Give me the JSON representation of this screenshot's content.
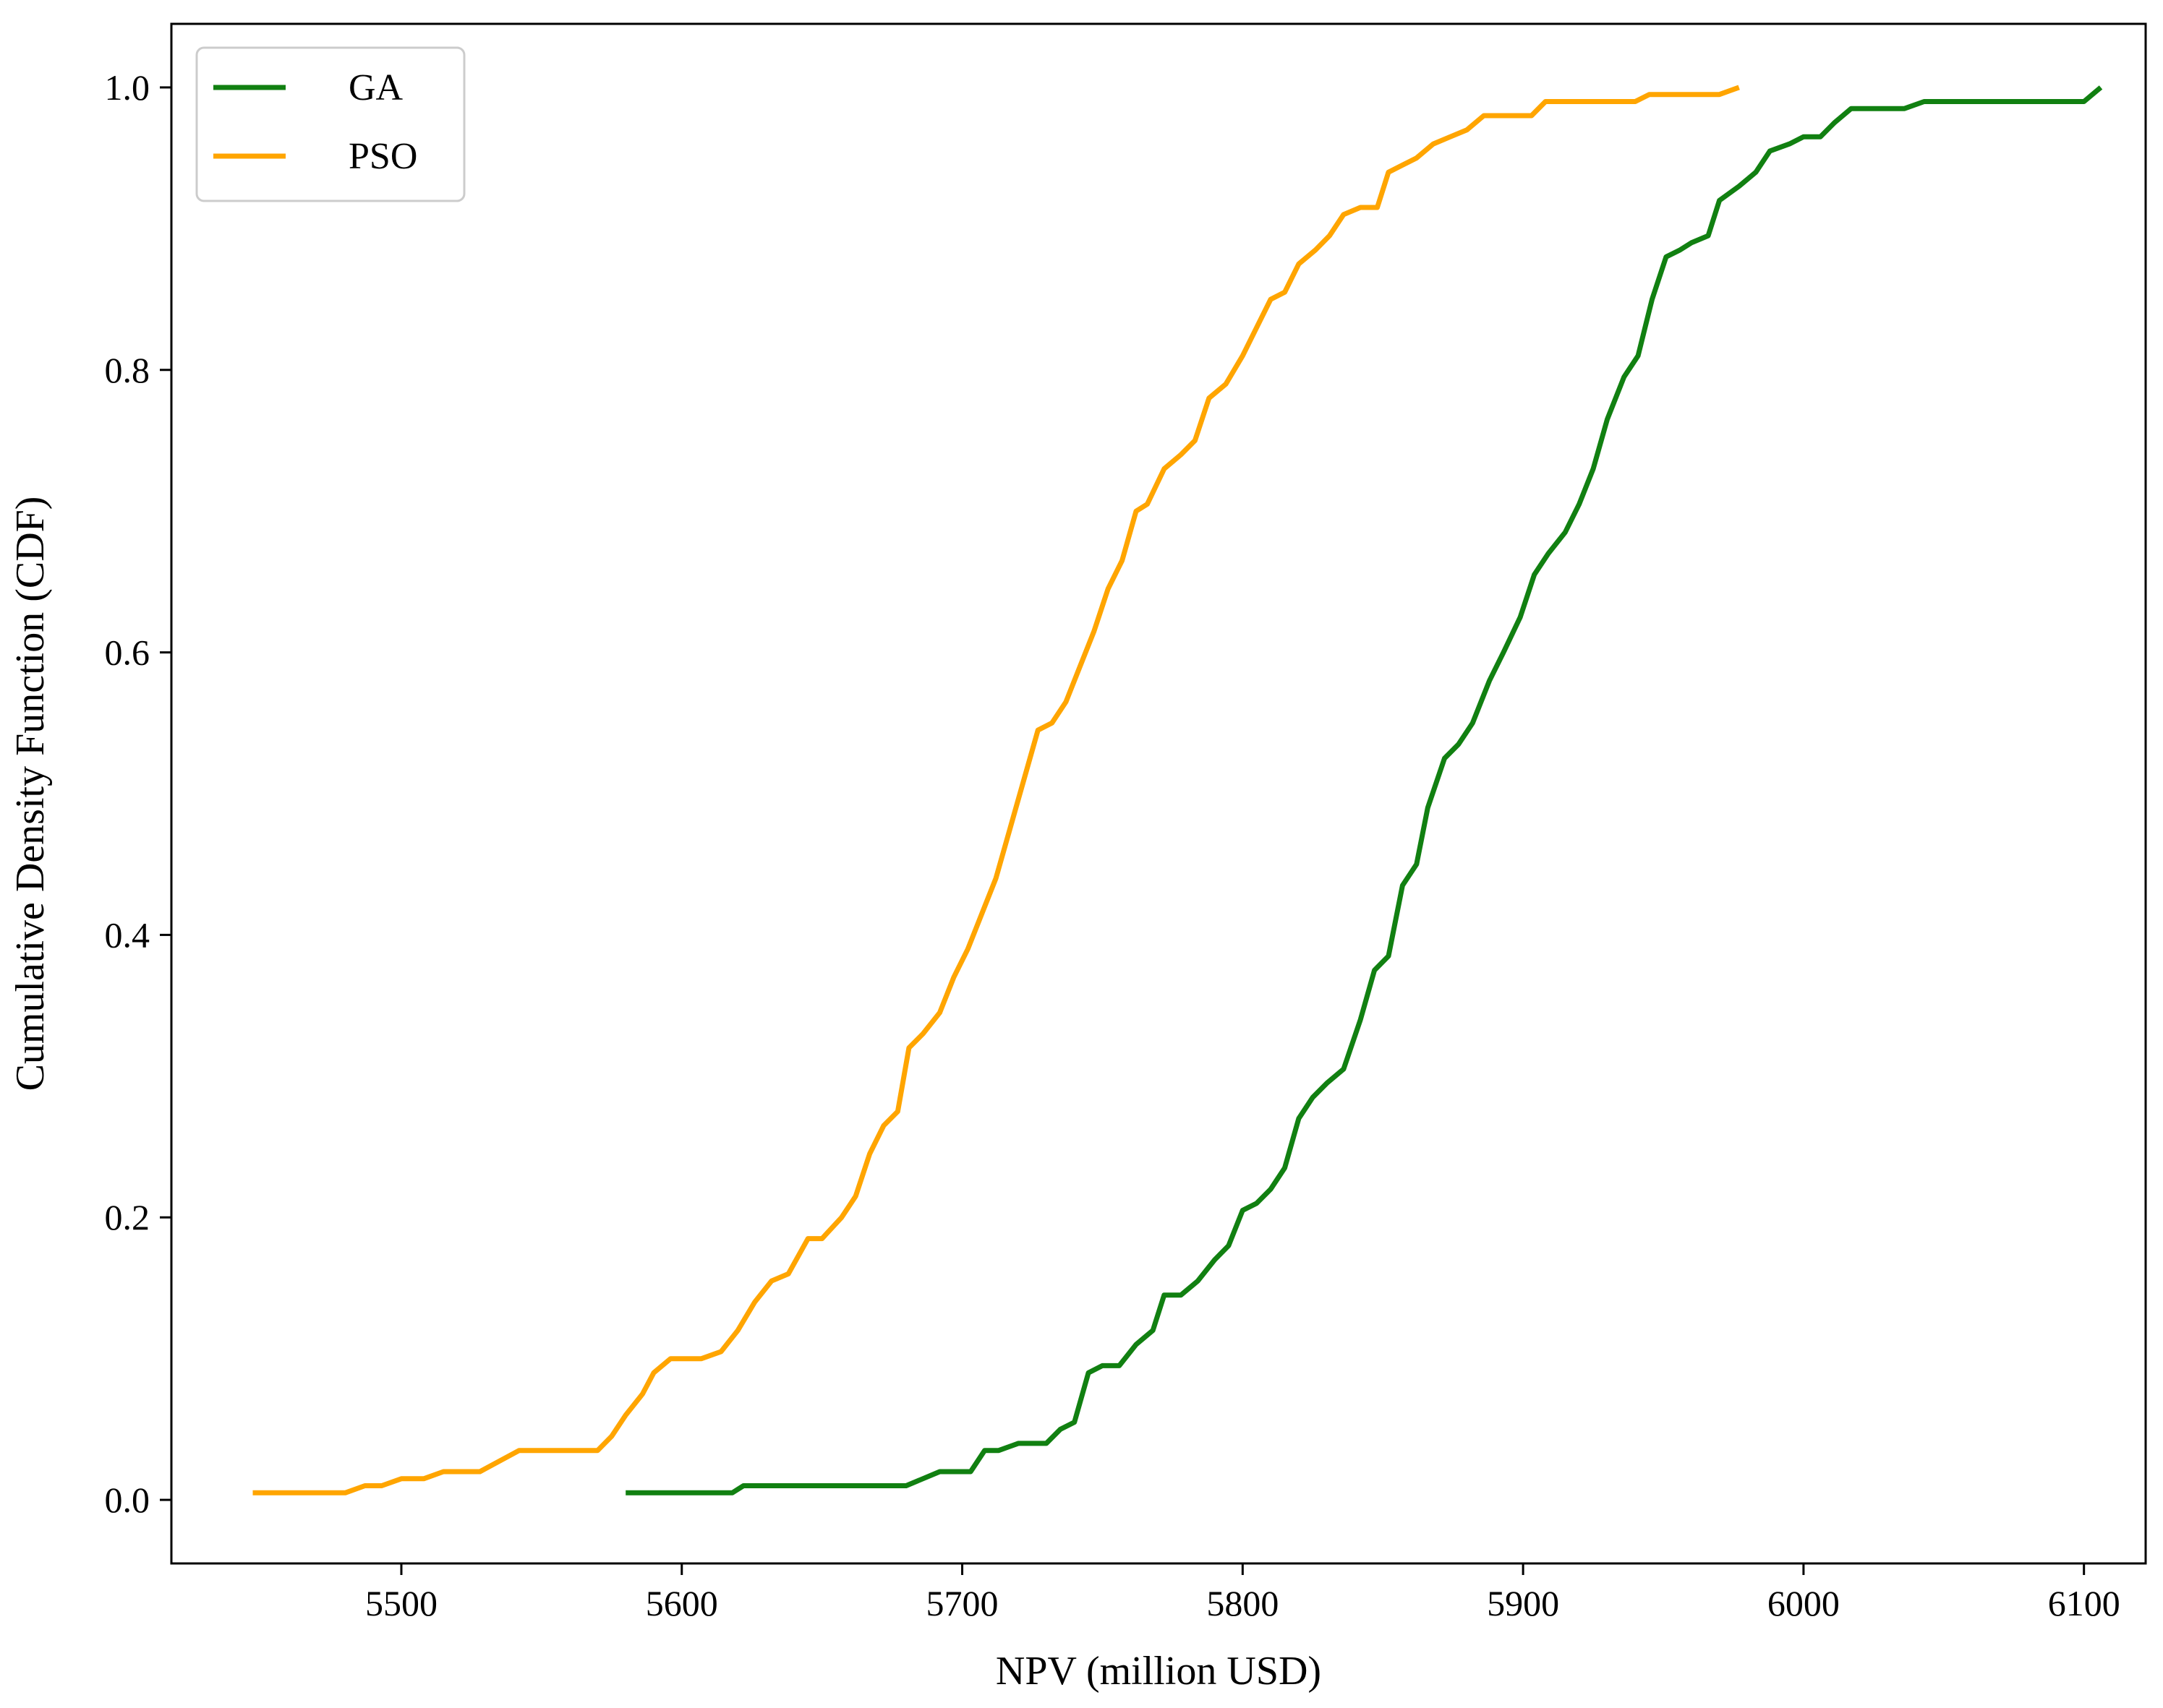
{
  "chart_data": {
    "type": "line",
    "title": "",
    "xlabel": "NPV (million USD)",
    "ylabel": "Cumulative Density Function (CDF)",
    "xlim": [
      5418,
      6122
    ],
    "ylim": [
      -0.045,
      1.045
    ],
    "xticks": [
      5500,
      5600,
      5700,
      5800,
      5900,
      6000,
      6100
    ],
    "yticks": [
      0.0,
      0.2,
      0.4,
      0.6,
      0.8,
      1.0
    ],
    "xtick_labels": [
      "5500",
      "5600",
      "5700",
      "5800",
      "5900",
      "6000",
      "6100"
    ],
    "ytick_labels": [
      "0.0",
      "0.2",
      "0.4",
      "0.6",
      "0.8",
      "1.0"
    ],
    "grid": false,
    "legend": {
      "position": "top-left"
    },
    "series": [
      {
        "name": "GA",
        "color": "#118011",
        "points": [
          [
            5580,
            0.005
          ],
          [
            5618,
            0.005
          ],
          [
            5622,
            0.01
          ],
          [
            5680,
            0.01
          ],
          [
            5692,
            0.02
          ],
          [
            5703,
            0.02
          ],
          [
            5708,
            0.035
          ],
          [
            5713,
            0.035
          ],
          [
            5720,
            0.04
          ],
          [
            5730,
            0.04
          ],
          [
            5735,
            0.05
          ],
          [
            5740,
            0.055
          ],
          [
            5745,
            0.09
          ],
          [
            5750,
            0.095
          ],
          [
            5756,
            0.095
          ],
          [
            5762,
            0.11
          ],
          [
            5768,
            0.12
          ],
          [
            5772,
            0.145
          ],
          [
            5778,
            0.145
          ],
          [
            5784,
            0.155
          ],
          [
            5790,
            0.17
          ],
          [
            5795,
            0.18
          ],
          [
            5800,
            0.205
          ],
          [
            5805,
            0.21
          ],
          [
            5810,
            0.22
          ],
          [
            5815,
            0.235
          ],
          [
            5820,
            0.27
          ],
          [
            5825,
            0.285
          ],
          [
            5830,
            0.295
          ],
          [
            5836,
            0.305
          ],
          [
            5842,
            0.34
          ],
          [
            5847,
            0.375
          ],
          [
            5852,
            0.385
          ],
          [
            5857,
            0.435
          ],
          [
            5862,
            0.45
          ],
          [
            5866,
            0.49
          ],
          [
            5872,
            0.525
          ],
          [
            5877,
            0.535
          ],
          [
            5882,
            0.55
          ],
          [
            5888,
            0.58
          ],
          [
            5893,
            0.6
          ],
          [
            5899,
            0.625
          ],
          [
            5904,
            0.655
          ],
          [
            5909,
            0.67
          ],
          [
            5915,
            0.685
          ],
          [
            5920,
            0.705
          ],
          [
            5925,
            0.73
          ],
          [
            5930,
            0.765
          ],
          [
            5936,
            0.795
          ],
          [
            5941,
            0.81
          ],
          [
            5946,
            0.85
          ],
          [
            5951,
            0.88
          ],
          [
            5956,
            0.885
          ],
          [
            5960,
            0.89
          ],
          [
            5966,
            0.895
          ],
          [
            5970,
            0.92
          ],
          [
            5977,
            0.93
          ],
          [
            5983,
            0.94
          ],
          [
            5988,
            0.955
          ],
          [
            5995,
            0.96
          ],
          [
            6000,
            0.965
          ],
          [
            6006,
            0.965
          ],
          [
            6011,
            0.975
          ],
          [
            6017,
            0.985
          ],
          [
            6036,
            0.985
          ],
          [
            6043,
            0.99
          ],
          [
            6100,
            0.99
          ],
          [
            6106,
            1.0
          ]
        ]
      },
      {
        "name": "PSO",
        "color": "#ffa500",
        "points": [
          [
            5447,
            0.005
          ],
          [
            5480,
            0.005
          ],
          [
            5487,
            0.01
          ],
          [
            5493,
            0.01
          ],
          [
            5500,
            0.015
          ],
          [
            5508,
            0.015
          ],
          [
            5515,
            0.02
          ],
          [
            5528,
            0.02
          ],
          [
            5542,
            0.035
          ],
          [
            5570,
            0.035
          ],
          [
            5575,
            0.045
          ],
          [
            5580,
            0.06
          ],
          [
            5586,
            0.075
          ],
          [
            5590,
            0.09
          ],
          [
            5596,
            0.1
          ],
          [
            5607,
            0.1
          ],
          [
            5614,
            0.105
          ],
          [
            5620,
            0.12
          ],
          [
            5626,
            0.14
          ],
          [
            5632,
            0.155
          ],
          [
            5638,
            0.16
          ],
          [
            5645,
            0.185
          ],
          [
            5650,
            0.185
          ],
          [
            5657,
            0.2
          ],
          [
            5662,
            0.215
          ],
          [
            5667,
            0.245
          ],
          [
            5672,
            0.265
          ],
          [
            5677,
            0.275
          ],
          [
            5681,
            0.32
          ],
          [
            5686,
            0.33
          ],
          [
            5692,
            0.345
          ],
          [
            5697,
            0.37
          ],
          [
            5702,
            0.39
          ],
          [
            5707,
            0.415
          ],
          [
            5712,
            0.44
          ],
          [
            5717,
            0.475
          ],
          [
            5722,
            0.51
          ],
          [
            5727,
            0.545
          ],
          [
            5732,
            0.55
          ],
          [
            5737,
            0.565
          ],
          [
            5742,
            0.59
          ],
          [
            5747,
            0.615
          ],
          [
            5752,
            0.645
          ],
          [
            5757,
            0.665
          ],
          [
            5762,
            0.7
          ],
          [
            5766,
            0.705
          ],
          [
            5772,
            0.73
          ],
          [
            5778,
            0.74
          ],
          [
            5783,
            0.75
          ],
          [
            5788,
            0.78
          ],
          [
            5794,
            0.79
          ],
          [
            5800,
            0.81
          ],
          [
            5805,
            0.83
          ],
          [
            5810,
            0.85
          ],
          [
            5815,
            0.855
          ],
          [
            5820,
            0.875
          ],
          [
            5826,
            0.885
          ],
          [
            5831,
            0.895
          ],
          [
            5836,
            0.91
          ],
          [
            5842,
            0.915
          ],
          [
            5848,
            0.915
          ],
          [
            5852,
            0.94
          ],
          [
            5857,
            0.945
          ],
          [
            5862,
            0.95
          ],
          [
            5868,
            0.96
          ],
          [
            5874,
            0.965
          ],
          [
            5880,
            0.97
          ],
          [
            5886,
            0.98
          ],
          [
            5892,
            0.98
          ],
          [
            5903,
            0.98
          ],
          [
            5908,
            0.99
          ],
          [
            5930,
            0.99
          ],
          [
            5940,
            0.99
          ],
          [
            5945,
            0.995
          ],
          [
            5970,
            0.995
          ],
          [
            5977,
            1.0
          ]
        ]
      }
    ]
  }
}
